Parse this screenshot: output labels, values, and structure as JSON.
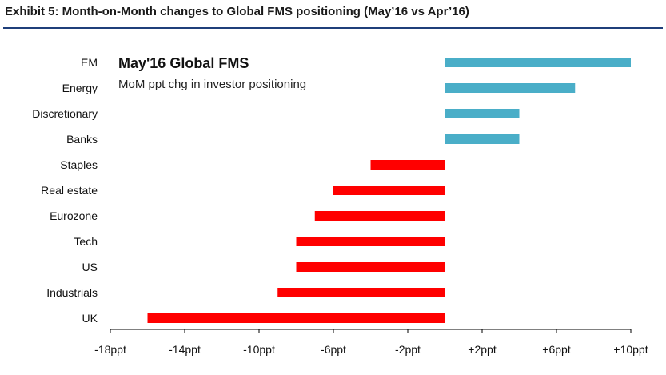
{
  "exhibit": {
    "title": "Exhibit 5: Month-on-Month changes to Global FMS positioning (May’16 vs Apr’16)"
  },
  "colors": {
    "positive": "#4aaec8",
    "negative": "#ff0000",
    "axis": "#000000",
    "rule": "#1f3f7a"
  },
  "chart_data": {
    "type": "bar",
    "orientation": "horizontal",
    "title": "May'16 Global FMS",
    "subtitle": "MoM ppt chg in investor positioning",
    "categories": [
      "EM",
      "Energy",
      "Discretionary",
      "Banks",
      "Staples",
      "Real estate",
      "Eurozone",
      "Tech",
      "US",
      "Industrials",
      "UK"
    ],
    "values": [
      10,
      7,
      4,
      4,
      -4,
      -6,
      -7,
      -8,
      -8,
      -9,
      -16
    ],
    "xlim": [
      -18,
      10
    ],
    "xticks": [
      -18,
      -14,
      -10,
      -6,
      -2,
      2,
      6,
      10
    ],
    "xtick_labels": [
      "-18ppt",
      "-14ppt",
      "-10ppt",
      "-6ppt",
      "-2ppt",
      "+2ppt",
      "+6ppt",
      "+10ppt"
    ],
    "xlabel": "",
    "ylabel": "",
    "grid": false,
    "legend": "none"
  }
}
